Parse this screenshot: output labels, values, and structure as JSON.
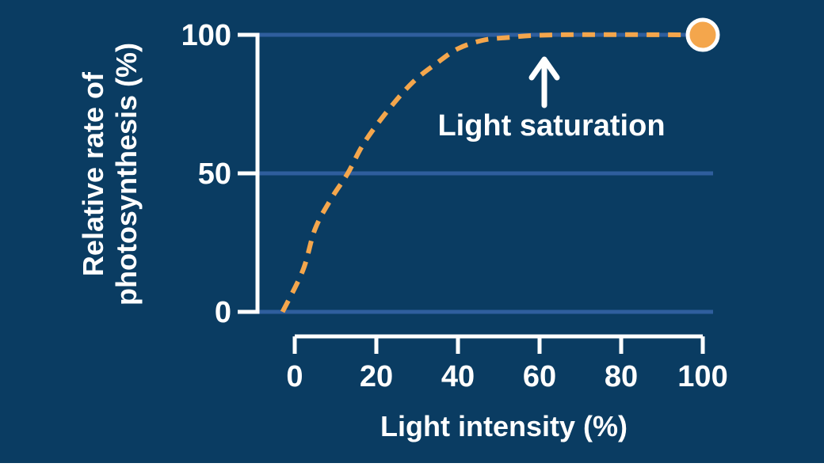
{
  "colors": {
    "background": "#0a3c62",
    "gridline": "#2f5e9d",
    "curve": "#f4a64c",
    "axis": "#ffffff",
    "text": "#ffffff",
    "marker_fill": "#f4a64c",
    "marker_stroke": "#ffffff"
  },
  "chart_data": {
    "type": "line",
    "xlabel": "Light intensity (%)",
    "ylabel": "Relative rate of photosynthesis (%)",
    "ylabel_lines": [
      "Relative rate of",
      "photosynthesis (%)"
    ],
    "xlim": [
      0,
      100
    ],
    "ylim": [
      0,
      100
    ],
    "x_ticks": [
      0,
      20,
      40,
      60,
      80,
      100
    ],
    "y_ticks": [
      0,
      50,
      100
    ],
    "grid": "horizontal-only",
    "legend": "none",
    "series": [
      {
        "name": "Relative rate of photosynthesis",
        "style": "dashed",
        "color": "#f4a64c",
        "points": [
          [
            -3,
            0
          ],
          [
            2,
            15
          ],
          [
            5,
            30
          ],
          [
            9,
            41
          ],
          [
            13,
            50
          ],
          [
            17,
            61
          ],
          [
            23,
            73
          ],
          [
            29,
            83
          ],
          [
            35,
            90
          ],
          [
            40,
            95
          ],
          [
            46,
            98
          ],
          [
            52,
            99
          ],
          [
            64,
            100
          ],
          [
            100,
            100
          ]
        ]
      }
    ],
    "marker": {
      "x": 100,
      "y": 100
    },
    "annotation": {
      "text": "Light saturation",
      "arrow": "up",
      "arrow_tip": [
        61,
        91
      ]
    }
  }
}
